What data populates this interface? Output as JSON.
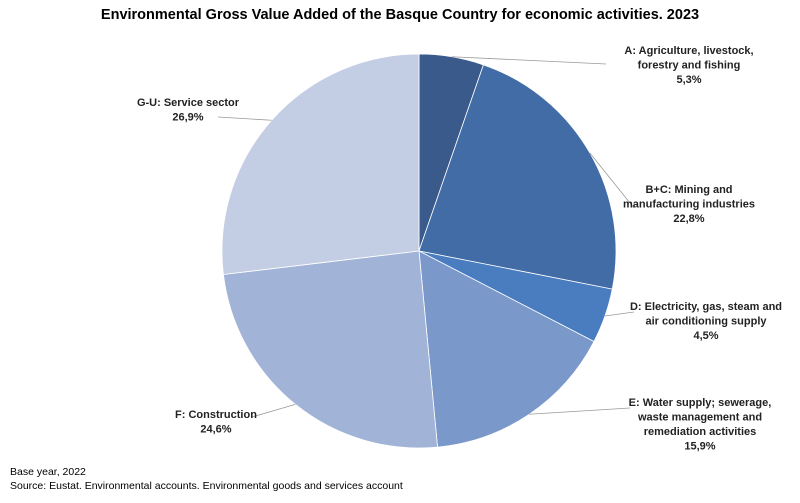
{
  "chart_data": {
    "type": "pie",
    "title": "Environmental Gross Value Added of the Basque Country for economic activities. 2023",
    "start_angle_deg": 0,
    "direction": "clockwise",
    "slices": [
      {
        "lines": [
          "A: Agriculture, livestock,",
          "forestry and fishing",
          "5,3%"
        ],
        "value": 5.3,
        "color": "#3A5A8C"
      },
      {
        "lines": [
          "B+C: Mining and",
          "manufacturing industries",
          "22,8%"
        ],
        "value": 22.8,
        "color": "#416CA6"
      },
      {
        "lines": [
          "D: Electricity, gas, steam and",
          "air conditioning supply",
          "4,5%"
        ],
        "value": 4.5,
        "color": "#4A7CC0"
      },
      {
        "lines": [
          "E: Water supply; sewerage,",
          "waste management and",
          "remediation activities",
          "15,9%"
        ],
        "value": 15.9,
        "color": "#7A98C9"
      },
      {
        "lines": [
          "F: Construction",
          "24,6%"
        ],
        "value": 24.6,
        "color": "#A1B3D6"
      },
      {
        "lines": [
          "G-U: Service sector",
          "26,9%"
        ],
        "value": 26.9,
        "color": "#C3CDE3"
      }
    ]
  },
  "footer": {
    "base_year": "Base year, 2022",
    "source": "Source: Eustat. Environmental accounts. Environmental goods and services account"
  }
}
